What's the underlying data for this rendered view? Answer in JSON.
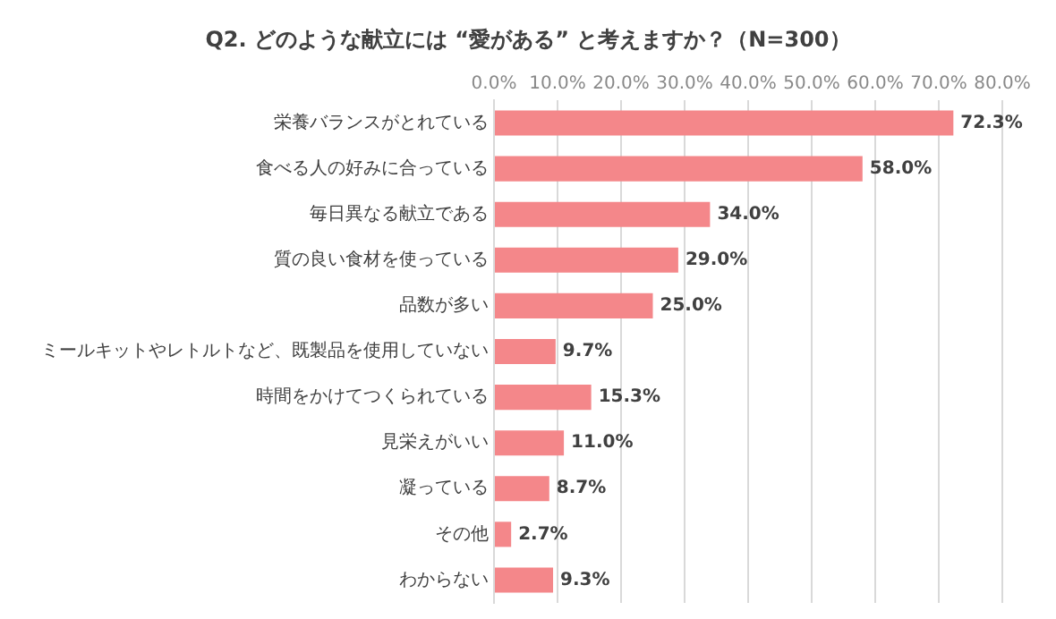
{
  "chart_data": {
    "type": "bar",
    "orientation": "horizontal",
    "title": "Q2. どのような献立には “愛がある” と考えますか？（N=300）",
    "categories": [
      "栄養バランスがとれている",
      "食べる人の好みに合っている",
      "毎日異なる献立である",
      "質の良い食材を使っている",
      "品数が多い",
      "ミールキットやレトルトなど、既製品を使用していない",
      "時間をかけてつくられている",
      "見栄えがいい",
      "凝っている",
      "その他",
      "わからない"
    ],
    "values": [
      72.3,
      58.0,
      34.0,
      29.0,
      25.0,
      9.7,
      15.3,
      11.0,
      8.7,
      2.7,
      9.3
    ],
    "value_labels": [
      "72.3%",
      "58.0%",
      "34.0%",
      "29.0%",
      "25.0%",
      "9.7%",
      "15.3%",
      "11.0%",
      "8.7%",
      "2.7%",
      "9.3%"
    ],
    "color": "#f4878a",
    "xlim": [
      0,
      80
    ],
    "xticks": [
      {
        "value": 0,
        "label": "0.0%"
      },
      {
        "value": 10,
        "label": "10.0%"
      },
      {
        "value": 20,
        "label": "20.0%"
      },
      {
        "value": 30,
        "label": "30.0%"
      },
      {
        "value": 40,
        "label": "40.0%"
      },
      {
        "value": 50,
        "label": "50.0%"
      },
      {
        "value": 60,
        "label": "60.0%"
      },
      {
        "value": 70,
        "label": "70.0%"
      },
      {
        "value": 80,
        "label": "80.0%"
      }
    ],
    "grid": "x",
    "legend": false
  }
}
